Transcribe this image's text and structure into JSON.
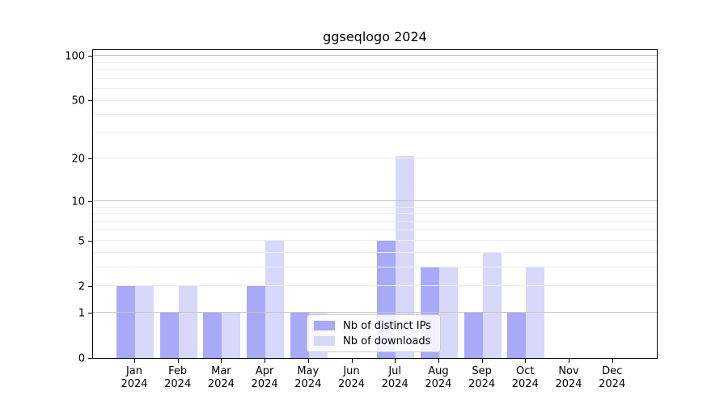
{
  "title": "ggseqlogo 2024",
  "chart_data": {
    "type": "bar",
    "title": "ggseqlogo 2024",
    "categories": [
      "Jan",
      "Feb",
      "Mar",
      "Apr",
      "May",
      "Jun",
      "Jul",
      "Aug",
      "Sep",
      "Oct",
      "Nov",
      "Dec"
    ],
    "year_label": "2024",
    "series": [
      {
        "name": "Nb of distinct IPs",
        "color": "#a9a9fa",
        "values": [
          2,
          1,
          1,
          2,
          1,
          0,
          5,
          3,
          1,
          1,
          0,
          0
        ]
      },
      {
        "name": "Nb of downloads",
        "color": "#d8d8fa",
        "values": [
          2,
          2,
          1,
          5,
          1,
          0,
          21,
          3,
          4,
          3,
          0,
          0
        ]
      }
    ],
    "yscale": "log1p",
    "ylim": [
      0,
      112
    ],
    "yticks": [
      0,
      1,
      2,
      5,
      10,
      20,
      50,
      100
    ],
    "grid_minor": [
      2,
      3,
      4,
      5,
      6,
      7,
      8,
      9,
      20,
      30,
      40,
      50,
      60,
      70,
      80,
      90
    ],
    "grid_major": [
      1,
      10,
      100
    ],
    "grid_minor_color": "#ececec",
    "grid_major_color": "#c6c6c6",
    "axis_color": "#000000",
    "grid_on": true,
    "legend_position": "lower-center"
  }
}
